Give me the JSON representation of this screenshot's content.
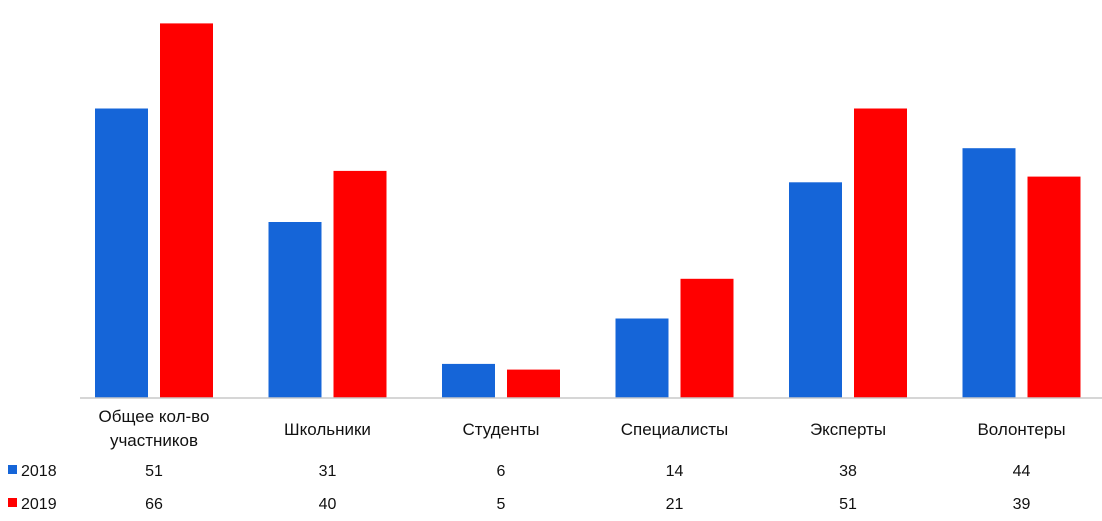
{
  "chart_data": {
    "type": "bar",
    "categories": [
      [
        "Общее кол-во",
        "участников"
      ],
      [
        "Школьники"
      ],
      [
        "Студенты"
      ],
      [
        "Специалисты"
      ],
      [
        "Эксперты"
      ],
      [
        "Волонтеры"
      ]
    ],
    "series": [
      {
        "name": "2018",
        "color": "#1565D8",
        "values": [
          51,
          31,
          6,
          14,
          38,
          44
        ]
      },
      {
        "name": "2019",
        "color": "#FF0000",
        "values": [
          66,
          40,
          5,
          21,
          51,
          39
        ]
      }
    ],
    "ylim": [
      0,
      68
    ],
    "grid": false,
    "legend": "bottom-left data table"
  }
}
